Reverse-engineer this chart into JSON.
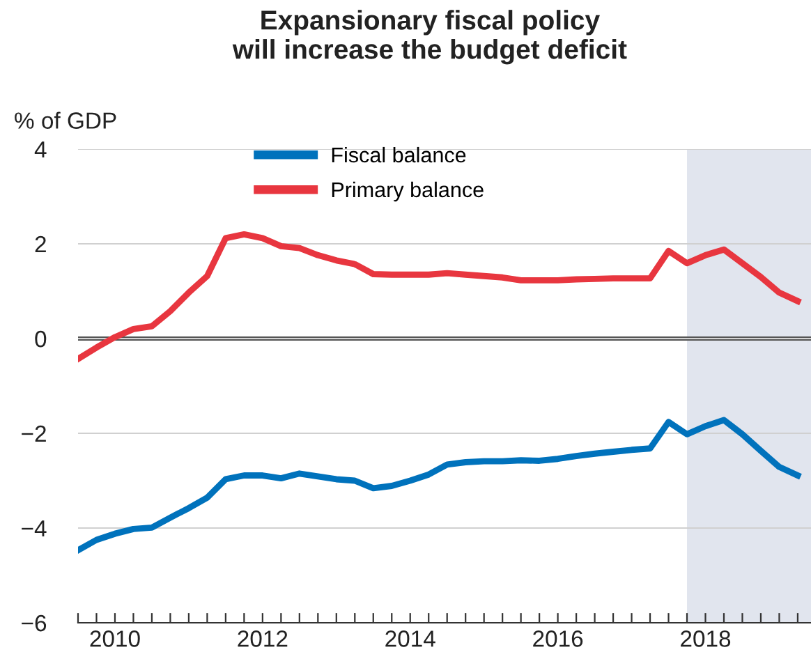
{
  "chart_data": {
    "type": "line",
    "title": "Expansionary fiscal policy\nwill increase the budget deficit",
    "ylabel": "% of GDP",
    "x": [
      2010,
      2010.25,
      2010.5,
      2010.75,
      2011,
      2011.25,
      2011.5,
      2011.75,
      2012,
      2012.25,
      2012.5,
      2012.75,
      2013,
      2013.25,
      2013.5,
      2013.75,
      2014,
      2014.25,
      2014.5,
      2014.75,
      2015,
      2015.25,
      2015.5,
      2015.75,
      2016,
      2016.25,
      2016.5,
      2016.75,
      2017,
      2017.25,
      2017.5,
      2017.75,
      2018,
      2018.25,
      2018.5,
      2018.75,
      2019,
      2019.25,
      2019.5,
      2019.75
    ],
    "series": [
      {
        "name": "Fiscal balance",
        "color": "#0072bc",
        "values": [
          -4.47,
          -4.25,
          -4.12,
          -4.02,
          -3.99,
          -3.78,
          -3.58,
          -3.36,
          -2.97,
          -2.89,
          -2.89,
          -2.95,
          -2.85,
          -2.91,
          -2.97,
          -3.0,
          -3.16,
          -3.11,
          -3.0,
          -2.87,
          -2.66,
          -2.61,
          -2.59,
          -2.59,
          -2.57,
          -2.58,
          -2.54,
          -2.48,
          -2.43,
          -2.39,
          -2.35,
          -2.32,
          -1.76,
          -2.02,
          -1.85,
          -1.72,
          -2.02,
          -2.37,
          -2.71,
          -2.89
        ]
      },
      {
        "name": "Primary balance",
        "color": "#e8363f",
        "values": [
          -0.43,
          -0.19,
          0.03,
          0.2,
          0.26,
          0.58,
          0.97,
          1.32,
          2.12,
          2.2,
          2.12,
          1.95,
          1.91,
          1.76,
          1.65,
          1.57,
          1.36,
          1.35,
          1.35,
          1.35,
          1.38,
          1.35,
          1.32,
          1.29,
          1.23,
          1.23,
          1.23,
          1.25,
          1.26,
          1.27,
          1.27,
          1.27,
          1.85,
          1.59,
          1.76,
          1.88,
          1.59,
          1.3,
          0.97,
          0.79
        ]
      }
    ],
    "xlim": [
      2010,
      2019.93
    ],
    "xticks": [
      {
        "value": 2010,
        "label": null
      },
      {
        "value": 2010.25,
        "label": null
      },
      {
        "value": 2010.5,
        "label": null
      },
      {
        "value": 2010.75,
        "label": null
      },
      {
        "value": 2011,
        "label": null
      },
      {
        "value": 2011.25,
        "label": null
      },
      {
        "value": 2011.5,
        "label": null
      },
      {
        "value": 2011.75,
        "label": null
      },
      {
        "value": 2012,
        "label": null
      },
      {
        "value": 2012.25,
        "label": null
      },
      {
        "value": 2012.5,
        "label": null
      },
      {
        "value": 2012.75,
        "label": null
      },
      {
        "value": 2013,
        "label": null
      },
      {
        "value": 2013.25,
        "label": null
      },
      {
        "value": 2013.5,
        "label": null
      },
      {
        "value": 2013.75,
        "label": null
      },
      {
        "value": 2014,
        "label": null
      },
      {
        "value": 2014.25,
        "label": null
      },
      {
        "value": 2014.5,
        "label": null
      },
      {
        "value": 2014.75,
        "label": null
      },
      {
        "value": 2015,
        "label": null
      },
      {
        "value": 2015.25,
        "label": null
      },
      {
        "value": 2015.5,
        "label": null
      },
      {
        "value": 2015.75,
        "label": null
      },
      {
        "value": 2016,
        "label": null
      },
      {
        "value": 2016.25,
        "label": null
      },
      {
        "value": 2016.5,
        "label": null
      },
      {
        "value": 2016.75,
        "label": null
      },
      {
        "value": 2017,
        "label": null
      },
      {
        "value": 2017.25,
        "label": null
      },
      {
        "value": 2017.5,
        "label": null
      },
      {
        "value": 2017.75,
        "label": null
      },
      {
        "value": 2018,
        "label": null
      },
      {
        "value": 2018.25,
        "label": null
      },
      {
        "value": 2018.5,
        "label": null
      },
      {
        "value": 2018.75,
        "label": null
      },
      {
        "value": 2019,
        "label": null
      },
      {
        "value": 2019.25,
        "label": null
      },
      {
        "value": 2019.5,
        "label": null
      },
      {
        "value": 2019.75,
        "label": null
      },
      {
        "value": 2010.5,
        "label": "2010"
      },
      {
        "value": 2012.5,
        "label": "2012"
      },
      {
        "value": 2014.5,
        "label": "2014"
      },
      {
        "value": 2016.5,
        "label": "2016"
      },
      {
        "value": 2018.5,
        "label": "2018"
      }
    ],
    "ylim": [
      -6,
      4
    ],
    "yticks": [
      -6,
      -4,
      -2,
      0,
      2,
      4
    ],
    "bands": [
      {
        "axis": "x",
        "from": 2018.25,
        "to": 2019.93,
        "color": "#e1e5ee"
      }
    ],
    "ref_lines": [
      {
        "axis": "y",
        "value": 0,
        "color": "#555555"
      }
    ],
    "grid": "y",
    "legend": "top",
    "line_style": "solid",
    "marker": "none"
  }
}
